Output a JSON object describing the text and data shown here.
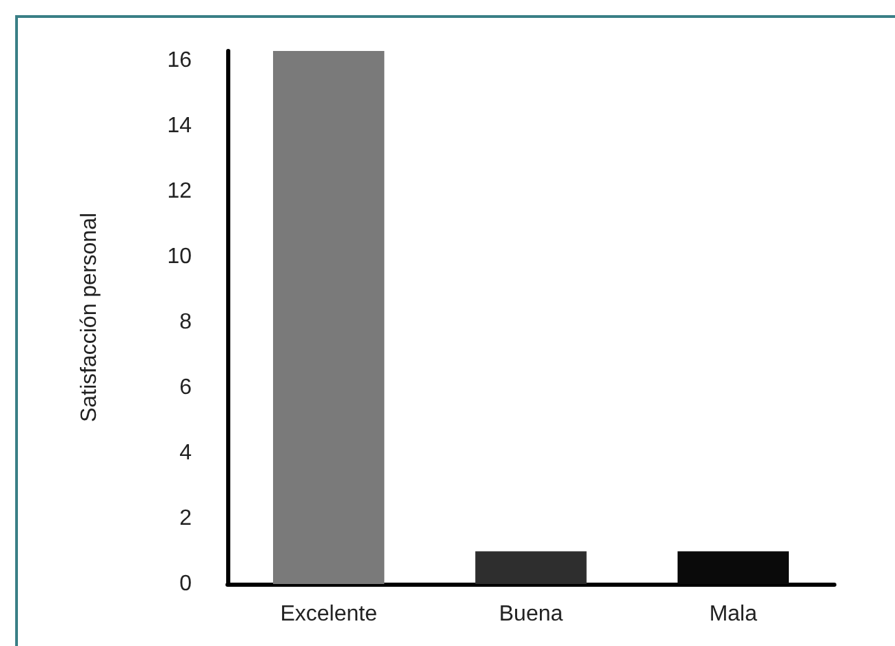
{
  "chart_data": {
    "type": "bar",
    "ylabel": "Satisfacción personal",
    "categories": [
      "Excelente",
      "Buena",
      "Mala"
    ],
    "values": [
      16.3,
      1,
      1
    ],
    "colors": [
      "#7a7a7a",
      "#2e2e2e",
      "#0a0a0a"
    ],
    "ylim": [
      0,
      16.3
    ],
    "yticks": [
      0,
      2,
      4,
      6,
      8,
      10,
      12,
      14,
      16
    ],
    "grid": false
  }
}
